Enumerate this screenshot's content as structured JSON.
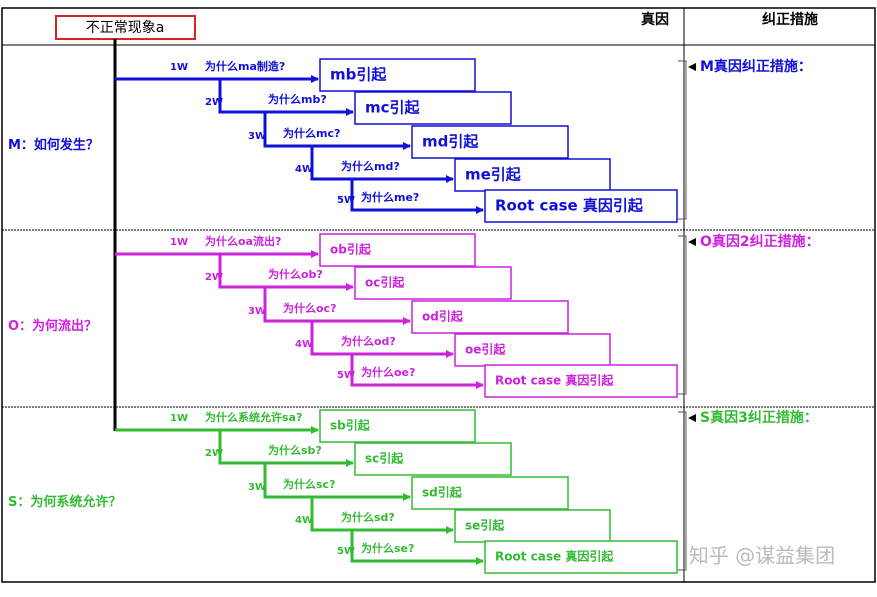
{
  "header": {
    "phenomenon": "不正常现象a",
    "cause_column": "真因",
    "action_column": "纠正措施"
  },
  "sections": [
    {
      "label": "M：如何发生？",
      "action": "M真因纠正措施：",
      "color": "#1010d8",
      "steps": [
        {
          "level": "1W",
          "question": "为什么ma制造?",
          "cause": "mb引起"
        },
        {
          "level": "2W",
          "question": "为什么mb?",
          "cause": "mc引起"
        },
        {
          "level": "3W",
          "question": "为什么mc?",
          "cause": "md引起"
        },
        {
          "level": "4W",
          "question": "为什么md?",
          "cause": "me引起"
        },
        {
          "level": "5W",
          "question": "为什么me?",
          "cause": "Root case 真因引起"
        }
      ]
    },
    {
      "label": "O：为何流出？",
      "action": "O真因2纠正措施：",
      "color": "#cc22dd",
      "steps": [
        {
          "level": "1W",
          "question": "为什么oa流出?",
          "cause": "ob引起"
        },
        {
          "level": "2W",
          "question": "为什么ob?",
          "cause": "oc引起"
        },
        {
          "level": "3W",
          "question": "为什么oc?",
          "cause": "od引起"
        },
        {
          "level": "4W",
          "question": "为什么od?",
          "cause": "oe引起"
        },
        {
          "level": "5W",
          "question": "为什么oe?",
          "cause": "Root case 真因引起"
        }
      ]
    },
    {
      "label": "S：为何系统允许？",
      "action": "S真因3纠正措施：",
      "color": "#33bb33",
      "steps": [
        {
          "level": "1W",
          "question": "为什么系统允许sa?",
          "cause": "sb引起"
        },
        {
          "level": "2W",
          "question": "为什么sb?",
          "cause": "sc引起"
        },
        {
          "level": "3W",
          "question": "为什么sc?",
          "cause": "sd引起"
        },
        {
          "level": "4W",
          "question": "为什么sd?",
          "cause": "se引起"
        },
        {
          "level": "5W",
          "question": "为什么se?",
          "cause": "Root case 真因引起"
        }
      ]
    }
  ],
  "watermark": "知乎 @谋益集团"
}
